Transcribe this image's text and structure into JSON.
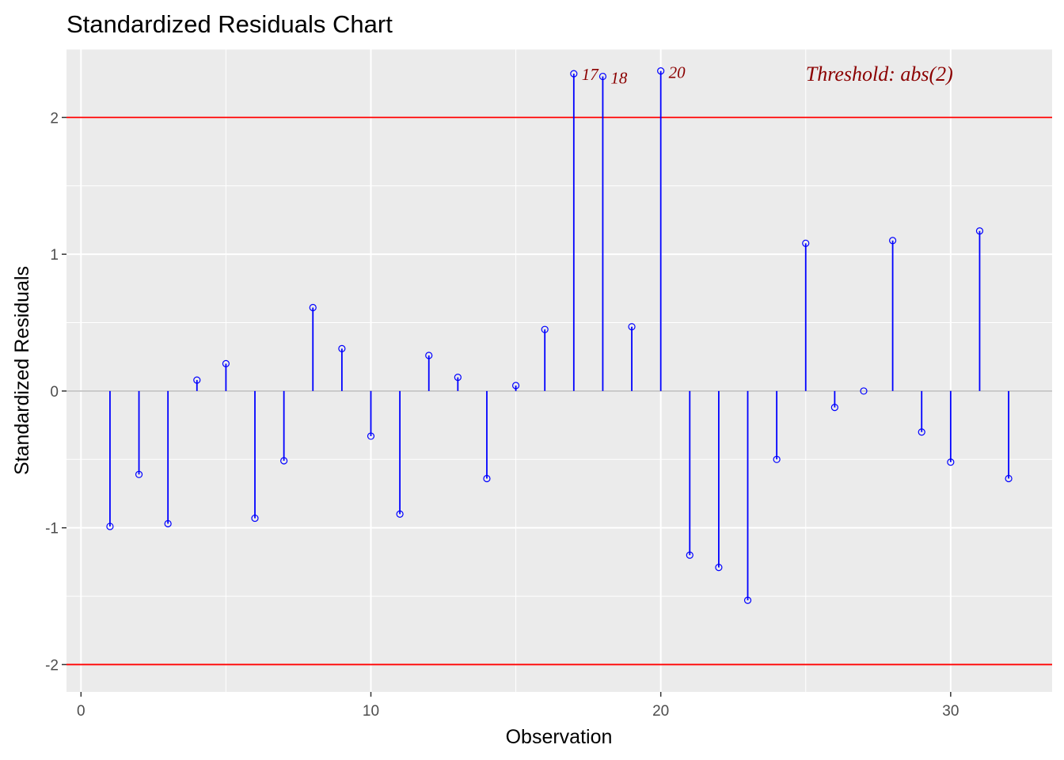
{
  "chart_data": {
    "type": "scatter",
    "title": "Standardized Residuals Chart",
    "xlabel": "Observation",
    "ylabel": "Standardized Residuals",
    "xlim": [
      -0.5,
      33.5
    ],
    "ylim": [
      -2.2,
      2.5
    ],
    "x_ticks": [
      0,
      10,
      20,
      30
    ],
    "x_tick_labels": [
      "0",
      "10",
      "20",
      "30"
    ],
    "y_ticks": [
      -2,
      -1,
      0,
      1,
      2
    ],
    "y_tick_labels": [
      "-2",
      "-1",
      "0",
      "1",
      "2"
    ],
    "grid": true,
    "threshold": 2,
    "threshold_label": "Threshold: abs(2)",
    "threshold_color": "#ff0000",
    "stem_color": "#0000ff",
    "label_color": "#8b0000",
    "baseline_color": "#bebebe",
    "panel_color": "#ebebeb",
    "series": [
      {
        "x": [
          1,
          2,
          3,
          4,
          5,
          6,
          7,
          8,
          9,
          10,
          11,
          12,
          13,
          14,
          15,
          16,
          17,
          18,
          19,
          20,
          21,
          22,
          23,
          24,
          25,
          26,
          27,
          28,
          29,
          30,
          31,
          32
        ],
        "values": [
          -0.99,
          -0.61,
          -0.97,
          0.08,
          0.2,
          -0.93,
          -0.51,
          0.61,
          0.31,
          -0.33,
          -0.9,
          0.26,
          0.1,
          -0.64,
          0.04,
          0.45,
          2.32,
          2.3,
          0.47,
          2.34,
          -1.2,
          -1.29,
          -1.53,
          -0.5,
          1.08,
          -0.12,
          0.0,
          1.1,
          -0.3,
          -0.52,
          1.17,
          -0.64
        ]
      }
    ],
    "outlier_labels": [
      {
        "x": 17,
        "text": "17"
      },
      {
        "x": 18,
        "text": "18"
      },
      {
        "x": 20,
        "text": "20"
      }
    ]
  }
}
